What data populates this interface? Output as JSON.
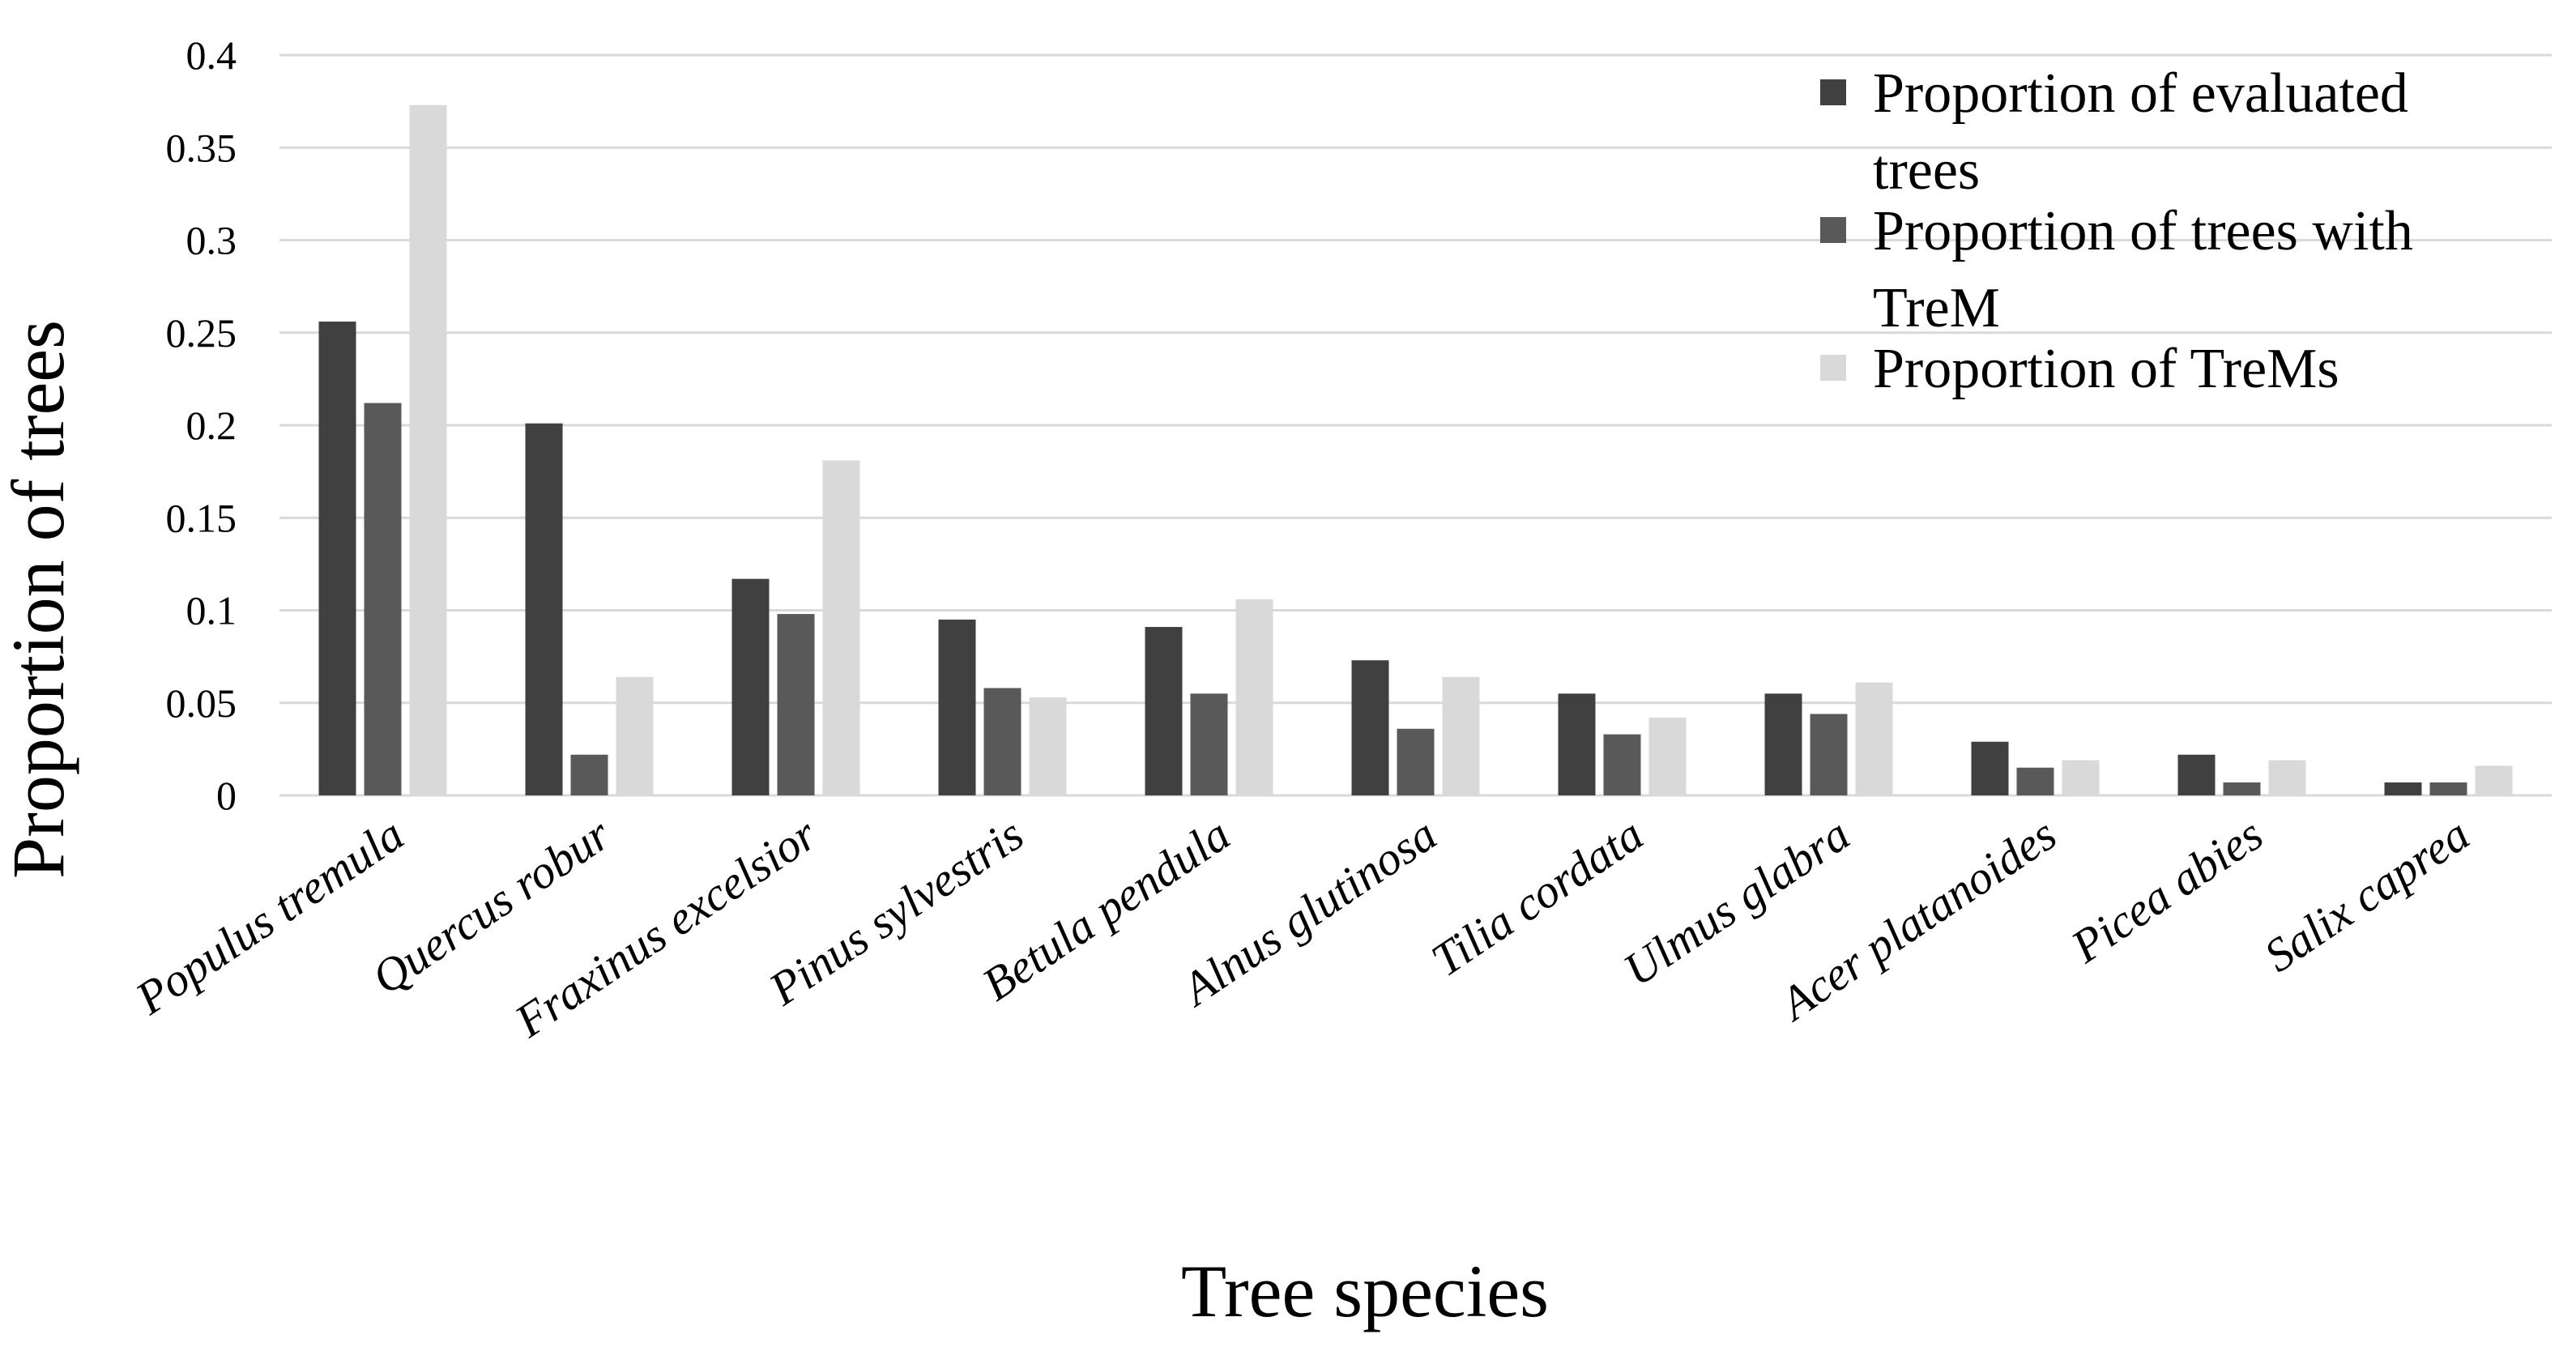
{
  "chart_data": {
    "type": "bar",
    "title": "",
    "xlabel": "Tree species",
    "ylabel": "Proportion of trees",
    "ylim": [
      0,
      0.4
    ],
    "yticks": [
      0,
      0.05,
      0.1,
      0.15,
      0.2,
      0.25,
      0.3,
      0.35,
      0.4
    ],
    "ytick_labels": [
      "0",
      "0.05",
      "0.1",
      "0.15",
      "0.2",
      "0.25",
      "0.3",
      "0.35",
      "0.4"
    ],
    "grid": true,
    "legend_position": "top-right",
    "categories": [
      "Populus tremula",
      "Quercus robur",
      "Fraxinus excelsior",
      "Pinus sylvestris",
      "Betula pendula",
      "Alnus glutinosa",
      "Tilia cordata",
      "Ulmus glabra",
      "Acer platanoides",
      "Picea abies",
      "Salix caprea"
    ],
    "series": [
      {
        "name": "Proportion of evaluated trees",
        "legend_lines": [
          "Proportion of evaluated",
          "trees"
        ],
        "color": "#404040",
        "values": [
          0.256,
          0.201,
          0.117,
          0.095,
          0.091,
          0.073,
          0.055,
          0.055,
          0.029,
          0.022,
          0.007
        ]
      },
      {
        "name": "Proportion of trees with TreM",
        "legend_lines": [
          "Proportion of trees with",
          "TreM"
        ],
        "color": "#595959",
        "values": [
          0.212,
          0.022,
          0.098,
          0.058,
          0.055,
          0.036,
          0.033,
          0.044,
          0.015,
          0.007,
          0.007
        ]
      },
      {
        "name": "Proportion of TreMs",
        "legend_lines": [
          "Proportion of TreMs"
        ],
        "color": "#d9d9d9",
        "values": [
          0.373,
          0.064,
          0.181,
          0.053,
          0.106,
          0.064,
          0.042,
          0.061,
          0.019,
          0.019,
          0.016
        ]
      }
    ]
  }
}
